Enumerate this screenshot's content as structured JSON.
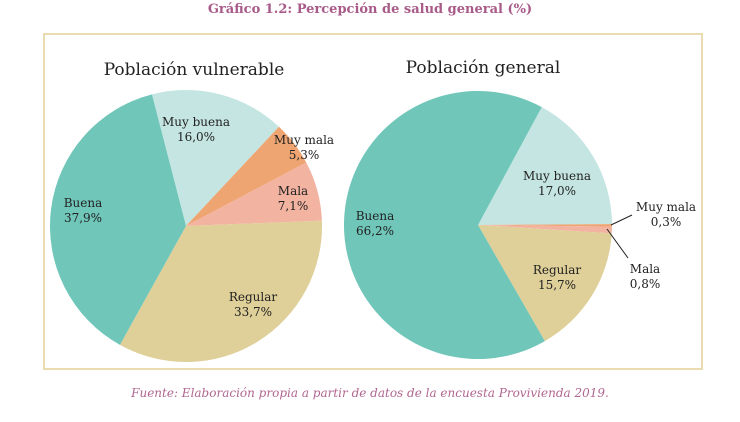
{
  "title": "Gráfico 1.2: Percepción de salud general (%)",
  "source": "Fuente: Elaboración propia a partir de datos de la encuesta Provivienda 2019.",
  "colors": {
    "Buena": "#6fc6b9",
    "Muy buena": "#c4e5e1",
    "Muy mala": "#eea572",
    "Mala": "#f3b3a1",
    "Regular": "#dfcf98",
    "frame": "#eadbb0",
    "title": "#a85a88"
  },
  "chart_data": [
    {
      "type": "pie",
      "title": "Población vulnerable",
      "slices": [
        {
          "label": "Muy buena",
          "value": 16.0,
          "text": "16,0%"
        },
        {
          "label": "Muy mala",
          "value": 5.3,
          "text": "5,3%"
        },
        {
          "label": "Mala",
          "value": 7.1,
          "text": "7,1%"
        },
        {
          "label": "Regular",
          "value": 33.7,
          "text": "33,7%"
        },
        {
          "label": "Buena",
          "value": 37.9,
          "text": "37,9%"
        }
      ]
    },
    {
      "type": "pie",
      "title": "Población general",
      "slices": [
        {
          "label": "Muy buena",
          "value": 17.0,
          "text": "17,0%"
        },
        {
          "label": "Muy mala",
          "value": 0.3,
          "text": "0,3%"
        },
        {
          "label": "Mala",
          "value": 0.8,
          "text": "0,8%"
        },
        {
          "label": "Regular",
          "value": 15.7,
          "text": "15,7%"
        },
        {
          "label": "Buena",
          "value": 66.2,
          "text": "66,2%"
        }
      ]
    }
  ]
}
